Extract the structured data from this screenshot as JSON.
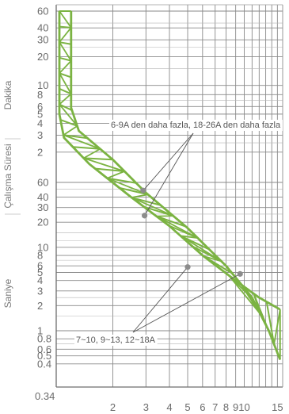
{
  "chart_data": {
    "type": "line",
    "title": "",
    "x_axis": {
      "scale": "log",
      "range": [
        1,
        16
      ],
      "tick_labels": [
        {
          "value": 2,
          "label": "2"
        },
        {
          "value": 3,
          "label": "3"
        },
        {
          "value": 4,
          "label": "4"
        },
        {
          "value": 5,
          "label": "5"
        },
        {
          "value": 6,
          "label": "6"
        },
        {
          "value": 7,
          "label": "7"
        },
        {
          "value": 8,
          "label": "8"
        },
        {
          "value": 9,
          "label": "9"
        },
        {
          "value": 10,
          "label": "10"
        },
        {
          "value": 15,
          "label": "15"
        }
      ]
    },
    "y_axis": {
      "scale": "log",
      "range_seconds": [
        0.3,
        3600
      ],
      "grid": true,
      "tick_labels": [
        {
          "seconds": 3600,
          "label": "60"
        },
        {
          "seconds": 2400,
          "label": "40"
        },
        {
          "seconds": 1800,
          "label": "30"
        },
        {
          "seconds": 1200,
          "label": "20"
        },
        {
          "seconds": 600,
          "label": "10"
        },
        {
          "seconds": 480,
          "label": "8"
        },
        {
          "seconds": 360,
          "label": "6"
        },
        {
          "seconds": 300,
          "label": "5"
        },
        {
          "seconds": 240,
          "label": "4"
        },
        {
          "seconds": 180,
          "label": "3"
        },
        {
          "seconds": 120,
          "label": "2"
        },
        {
          "seconds": 60,
          "label": "60"
        },
        {
          "seconds": 40,
          "label": "40"
        },
        {
          "seconds": 30,
          "label": "30"
        },
        {
          "seconds": 20,
          "label": "20"
        },
        {
          "seconds": 10,
          "label": "10"
        },
        {
          "seconds": 8,
          "label": "8"
        },
        {
          "seconds": 6,
          "label": "6"
        },
        {
          "seconds": 5,
          "label": "5"
        },
        {
          "seconds": 4,
          "label": "4"
        },
        {
          "seconds": 3,
          "label": "3"
        },
        {
          "seconds": 2,
          "label": "2"
        },
        {
          "seconds": 1,
          "label": "1"
        },
        {
          "seconds": 0.8,
          "label": "0.8"
        },
        {
          "seconds": 0.6,
          "label": "0.6"
        },
        {
          "seconds": 0.5,
          "label": "0.5"
        },
        {
          "seconds": 0.4,
          "label": "0.4"
        }
      ],
      "corner_label": "0.34",
      "group_labels": {
        "upper": "Dakika",
        "middle": "Çalışma Süresi",
        "lower": "Saniye"
      }
    },
    "band": {
      "color": "#7bb342",
      "upper_curve": [
        {
          "x": 1.04,
          "y": 3600
        },
        {
          "x": 1.04,
          "y": 300
        },
        {
          "x": 1.1,
          "y": 170
        },
        {
          "x": 1.5,
          "y": 90
        },
        {
          "x": 2.5,
          "y": 40
        },
        {
          "x": 4,
          "y": 18
        },
        {
          "x": 6,
          "y": 8
        },
        {
          "x": 9,
          "y": 4
        },
        {
          "x": 12,
          "y": 2.5
        },
        {
          "x": 15.5,
          "y": 1.8
        }
      ],
      "lower_curve": [
        {
          "x": 1.2,
          "y": 3600
        },
        {
          "x": 1.2,
          "y": 350
        },
        {
          "x": 1.32,
          "y": 200
        },
        {
          "x": 2,
          "y": 100
        },
        {
          "x": 3,
          "y": 45
        },
        {
          "x": 5,
          "y": 17
        },
        {
          "x": 8,
          "y": 6
        },
        {
          "x": 11,
          "y": 2.5
        },
        {
          "x": 13.5,
          "y": 1
        },
        {
          "x": 15.5,
          "y": 0.45
        }
      ]
    },
    "annotations": [
      {
        "text": "6-9A den daha fazla, 18-26A den daha fazla",
        "points": [
          {
            "x": 2.9,
            "y": 48
          },
          {
            "x": 2.95,
            "y": 24
          }
        ]
      },
      {
        "text": "7~10, 9~13, 12~18A",
        "points": [
          {
            "x": 5,
            "y": 5.8
          },
          {
            "x": 9.5,
            "y": 4.8
          }
        ]
      }
    ]
  }
}
